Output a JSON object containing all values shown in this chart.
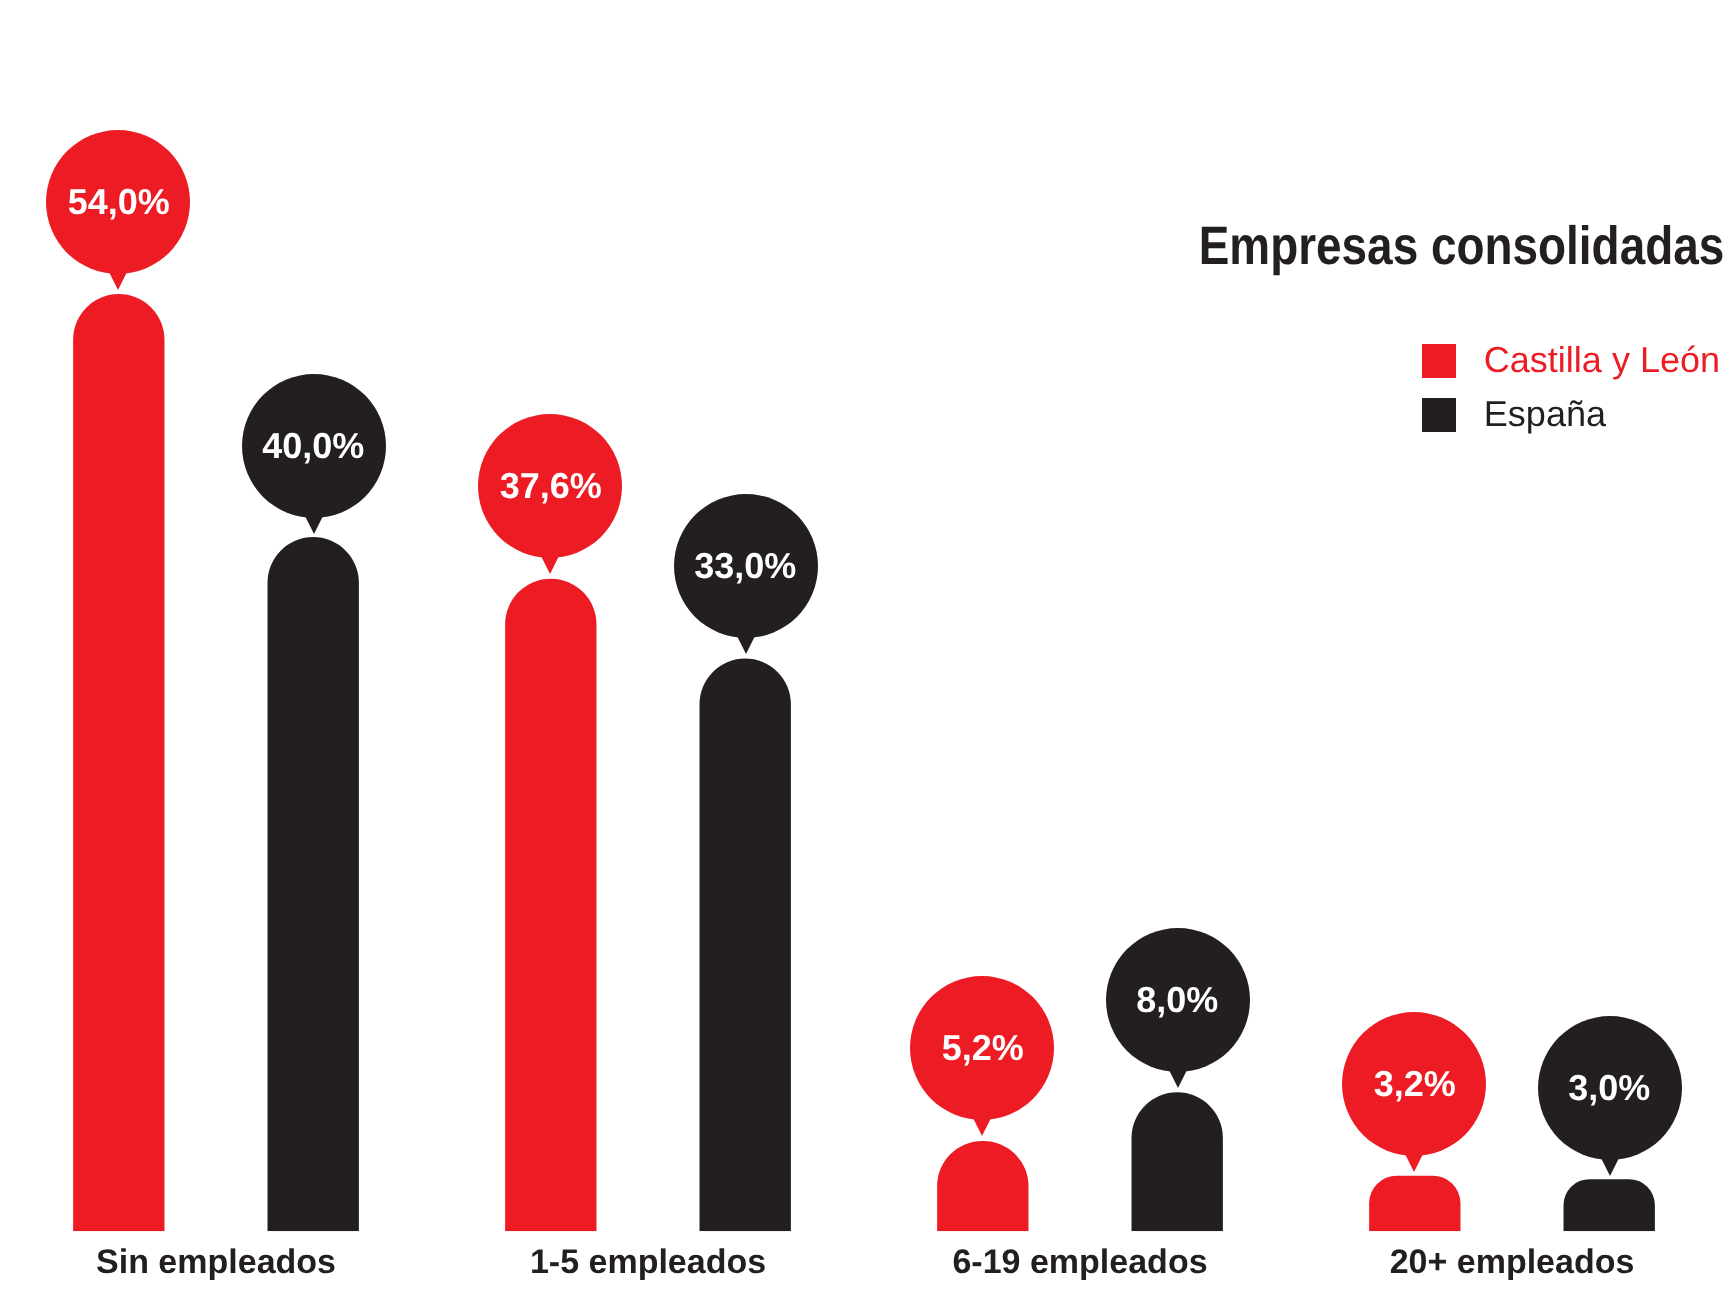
{
  "chart_data": {
    "type": "bar",
    "title": "Empresas consolidadas",
    "categories": [
      "Sin empleados",
      "1-5 empleados",
      "6-19 empleados",
      "20+ empleados"
    ],
    "series": [
      {
        "name": "Castilla y León",
        "color": "#ed1c24",
        "values": [
          54.0,
          37.6,
          5.2,
          3.2
        ],
        "value_labels": [
          "54,0%",
          "37,6%",
          "5,2%",
          "3,2%"
        ]
      },
      {
        "name": "España",
        "color": "#231f20",
        "values": [
          40.0,
          33.0,
          8.0,
          3.0
        ],
        "value_labels": [
          "40,0%",
          "33,0%",
          "8,0%",
          "3,0%"
        ]
      }
    ],
    "grid": false,
    "legend": "top right"
  }
}
